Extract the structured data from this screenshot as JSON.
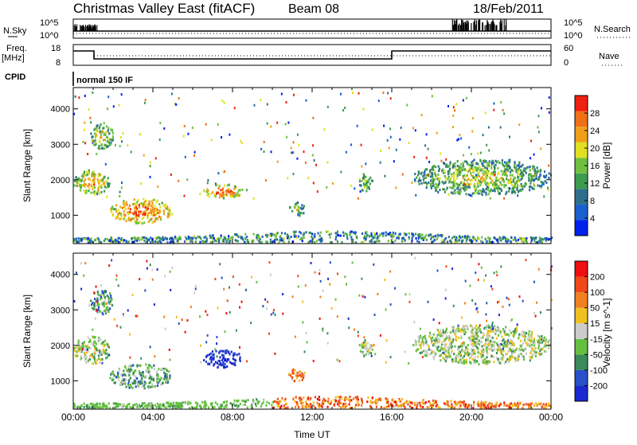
{
  "header": {
    "title": "Christmas Valley East (fitACF)",
    "beam": "Beam 08",
    "date": "18/Feb/2011"
  },
  "nsky_panel": {
    "label": "N.Sky",
    "right_label": "N.Search",
    "left_ticks": [
      "10^5",
      "10^0"
    ],
    "right_ticks": [
      "10^5",
      "10^0"
    ]
  },
  "freq_panel": {
    "label_line1": "Freq.",
    "label_line2": "[MHz]",
    "right_label": "Nave",
    "left_ticks": [
      "18",
      "8"
    ],
    "right_ticks": [
      "60",
      "0"
    ]
  },
  "cpid": {
    "label": "CPID",
    "program": "normal 150 IF"
  },
  "chart_data": [
    {
      "type": "heatmap",
      "name": "power",
      "ylabel": "Slant Range [km]",
      "yticks": [
        1000,
        2000,
        3000,
        4000
      ],
      "ylim": [
        200,
        4600
      ],
      "xlim": [
        0,
        24
      ],
      "colorbar": {
        "label": "Power [dB]",
        "ticks": [
          "28",
          "24",
          "20",
          "16",
          "12",
          "8",
          "4"
        ],
        "colors": [
          "#0022ee",
          "#1a5fd0",
          "#2e6e8c",
          "#3d9b4e",
          "#6fc040",
          "#e0e020",
          "#f0a018",
          "#f07018",
          "#ee2010"
        ]
      },
      "blobs": [
        {
          "t0": 0.0,
          "t1": 1.8,
          "r0": 1600,
          "r1": 2300,
          "level": 0.6
        },
        {
          "t0": 0.8,
          "t1": 2.0,
          "r0": 2900,
          "r1": 3600,
          "level": 0.5
        },
        {
          "t0": 1.8,
          "t1": 5.0,
          "r0": 800,
          "r1": 1500,
          "level": 0.7
        },
        {
          "t0": 6.5,
          "t1": 8.5,
          "r0": 1500,
          "r1": 1900,
          "level": 0.7
        },
        {
          "t0": 10.8,
          "t1": 11.6,
          "r0": 1000,
          "r1": 1400,
          "level": 0.4
        },
        {
          "t0": 14.3,
          "t1": 15.0,
          "r0": 1700,
          "r1": 2200,
          "level": 0.4
        },
        {
          "t0": 17.0,
          "t1": 24.0,
          "r0": 1600,
          "r1": 2600,
          "level": 0.45
        }
      ]
    },
    {
      "type": "heatmap",
      "name": "velocity",
      "ylabel": "Slant Range [km]",
      "yticks": [
        1000,
        2000,
        3000,
        4000
      ],
      "ylim": [
        200,
        4600
      ],
      "xlim": [
        0,
        24
      ],
      "xticks": [
        "00:00",
        "04:00",
        "08:00",
        "12:00",
        "16:00",
        "20:00",
        "00:00"
      ],
      "xlabel": "Time UT",
      "colorbar": {
        "label": "Velocity [m s^-1]",
        "ticks": [
          "200",
          "100",
          "50",
          "15",
          "-15",
          "-50",
          "-100",
          "-200"
        ],
        "colors": [
          "#1a2ad0",
          "#2850c8",
          "#3a8a5a",
          "#66c040",
          "#cccccc",
          "#f0c020",
          "#f08020",
          "#f04818",
          "#ee1010"
        ]
      },
      "blobs": [
        {
          "t0": 0.0,
          "t1": 1.8,
          "r0": 1500,
          "r1": 2300,
          "level": 0.45
        },
        {
          "t0": 0.8,
          "t1": 2.0,
          "r0": 2900,
          "r1": 3600,
          "level": 0.3
        },
        {
          "t0": 1.8,
          "t1": 5.0,
          "r0": 800,
          "r1": 1500,
          "level": 0.35
        },
        {
          "t0": 6.5,
          "t1": 8.5,
          "r0": 1400,
          "r1": 1900,
          "level": 0.05
        },
        {
          "t0": 10.8,
          "t1": 11.6,
          "r0": 1000,
          "r1": 1400,
          "level": 0.7
        },
        {
          "t0": 14.3,
          "t1": 15.0,
          "r0": 1700,
          "r1": 2200,
          "level": 0.45
        },
        {
          "t0": 17.0,
          "t1": 24.0,
          "r0": 1500,
          "r1": 2600,
          "level": 0.45
        }
      ]
    }
  ]
}
